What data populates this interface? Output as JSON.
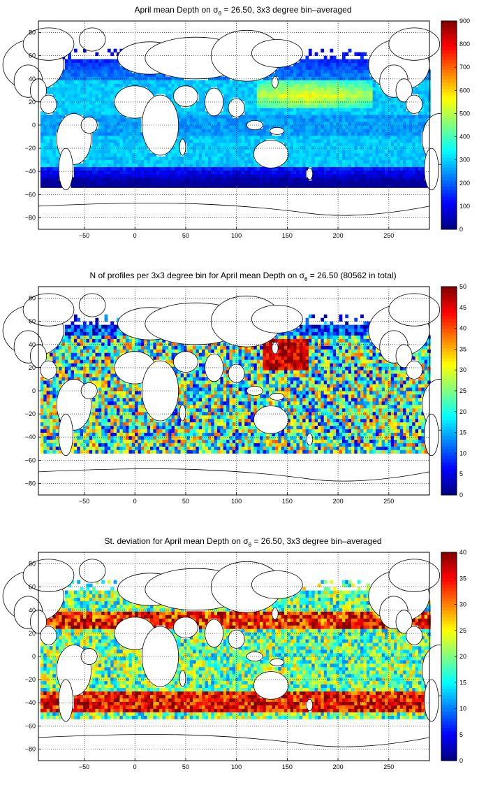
{
  "colormap": "jet",
  "chart_data": [
    {
      "type": "heatmap",
      "title_prefix": "April mean Depth on ",
      "title_symbol": "σ",
      "title_subscript": "θ",
      "title_suffix": " = 26.50, 3x3 degree bin–averaged",
      "x_ticks": [
        "−50",
        "0",
        "50",
        "100",
        "150",
        "200",
        "250"
      ],
      "x_tick_values": [
        -50,
        0,
        50,
        100,
        150,
        200,
        250
      ],
      "xlim": [
        -95,
        290
      ],
      "y_ticks": [
        "80",
        "60",
        "40",
        "20",
        "0",
        "−20",
        "−40",
        "−60",
        "−80"
      ],
      "y_tick_values": [
        80,
        60,
        40,
        20,
        0,
        -20,
        -40,
        -60,
        -80
      ],
      "ylim": [
        -90,
        90
      ],
      "grid": true,
      "colorbar": {
        "ticks": [
          "900",
          "800",
          "700",
          "600",
          "500",
          "400",
          "300",
          "200",
          "100",
          "0"
        ],
        "range": [
          0,
          900
        ]
      },
      "field": "depth"
    },
    {
      "type": "heatmap",
      "title_prefix": "N of profiles per 3x3 degree bin for April mean Depth on ",
      "title_symbol": "σ",
      "title_subscript": "θ",
      "title_suffix": " = 26.50 (80562 in total)",
      "x_ticks": [
        "−50",
        "0",
        "50",
        "100",
        "150",
        "200",
        "250"
      ],
      "x_tick_values": [
        -50,
        0,
        50,
        100,
        150,
        200,
        250
      ],
      "xlim": [
        -95,
        290
      ],
      "y_ticks": [
        "80",
        "60",
        "40",
        "20",
        "0",
        "−20",
        "−40",
        "−60",
        "−80"
      ],
      "y_tick_values": [
        80,
        60,
        40,
        20,
        0,
        -20,
        -40,
        -60,
        -80
      ],
      "ylim": [
        -90,
        90
      ],
      "grid": true,
      "colorbar": {
        "ticks": [
          "50",
          "45",
          "40",
          "35",
          "30",
          "25",
          "20",
          "15",
          "10",
          "5",
          "0"
        ],
        "range": [
          0,
          50
        ]
      },
      "field": "count"
    },
    {
      "type": "heatmap",
      "title_prefix": "St. deviation for April mean Depth on ",
      "title_symbol": "σ",
      "title_subscript": "θ",
      "title_suffix": " = 26.50, 3x3 degree bin–averaged",
      "x_ticks": [
        "−50",
        "0",
        "50",
        "100",
        "150",
        "200",
        "250"
      ],
      "x_tick_values": [
        -50,
        0,
        50,
        100,
        150,
        200,
        250
      ],
      "xlim": [
        -95,
        290
      ],
      "y_ticks": [
        "80",
        "60",
        "40",
        "20",
        "0",
        "−20",
        "−40",
        "−60",
        "−80"
      ],
      "y_tick_values": [
        80,
        60,
        40,
        20,
        0,
        -20,
        -40,
        -60,
        -80
      ],
      "ylim": [
        -90,
        90
      ],
      "grid": true,
      "colorbar": {
        "ticks": [
          "40",
          "35",
          "30",
          "25",
          "20",
          "15",
          "10",
          "5",
          "0"
        ],
        "range": [
          0,
          40
        ]
      },
      "field": "std"
    }
  ]
}
